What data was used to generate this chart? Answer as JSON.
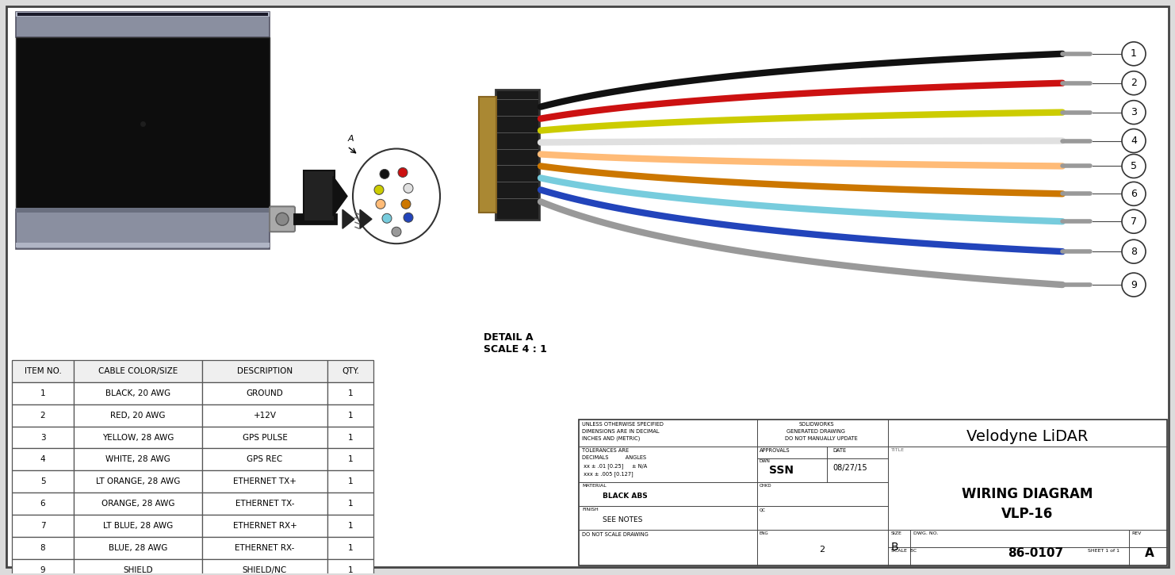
{
  "bg_color": "#dcdcdc",
  "company": "Velodyne LiDAR",
  "dwg_no": "86-0107",
  "rev": "A",
  "sheet": "SHEET 1 of 1",
  "scale_val": "2",
  "date": "08/27/15",
  "drawn": "SSN",
  "material": "BLACK ABS",
  "finish": "SEE NOTES",
  "detail_label": "DETAIL A\nSCALE 4 : 1",
  "table_headers": [
    "ITEM NO.",
    "CABLE COLOR/SIZE",
    "DESCRIPTION",
    "QTY."
  ],
  "table_rows": [
    [
      "1",
      "BLACK, 20 AWG",
      "GROUND",
      "1"
    ],
    [
      "2",
      "RED, 20 AWG",
      "+12V",
      "1"
    ],
    [
      "3",
      "YELLOW, 28 AWG",
      "GPS PULSE",
      "1"
    ],
    [
      "4",
      "WHITE, 28 AWG",
      "GPS REC",
      "1"
    ],
    [
      "5",
      "LT ORANGE, 28 AWG",
      "ETHERNET TX+",
      "1"
    ],
    [
      "6",
      "ORANGE, 28 AWG",
      "ETHERNET TX-",
      "1"
    ],
    [
      "7",
      "LT BLUE, 28 AWG",
      "ETHERNET RX+",
      "1"
    ],
    [
      "8",
      "BLUE, 28 AWG",
      "ETHERNET RX-",
      "1"
    ],
    [
      "9",
      "SHIELD",
      "SHIELD/NC",
      "1"
    ]
  ],
  "wire_colors": [
    "#111111",
    "#cc1111",
    "#cccc00",
    "#e0e0e0",
    "#ffbb77",
    "#cc7700",
    "#77ccdd",
    "#2244bb",
    "#999999"
  ],
  "wire_tip_color": "#888888"
}
